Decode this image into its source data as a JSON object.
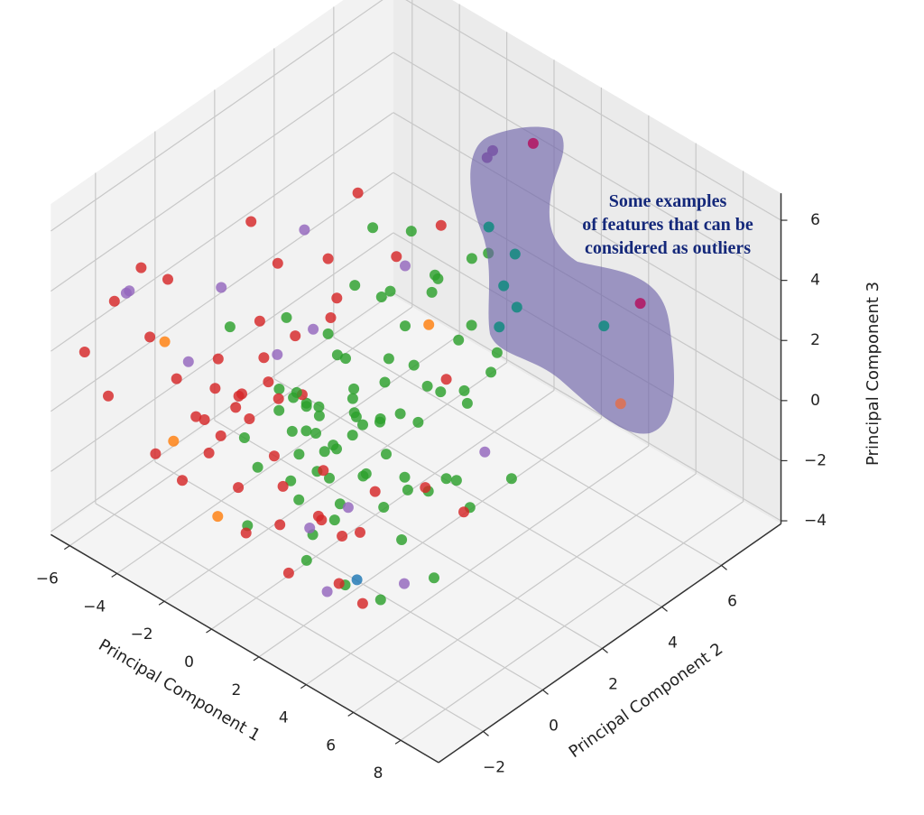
{
  "chart_data": {
    "type": "scatter3d",
    "title": "",
    "xlabel": "Principal Component 1",
    "ylabel": "Principal Component 2",
    "zlabel": "Principal Component 3",
    "xlim": [
      -6.8,
      9.6
    ],
    "ylim": [
      -3.5,
      8
    ],
    "zlim": [
      -4.1,
      6.9
    ],
    "xticks": [
      -6,
      -4,
      -2,
      0,
      2,
      4,
      6,
      8
    ],
    "yticks": [
      -2,
      0,
      2,
      4,
      6
    ],
    "zticks": [
      -4,
      -2,
      0,
      2,
      4,
      6
    ],
    "grid": true,
    "colors": [
      "#2ca02c",
      "#d62728",
      "#9467bd",
      "#ff7f0e",
      "#1f77b4",
      "#1f8a86",
      "#b0206a",
      "#7a5aa8",
      "#d9735a"
    ],
    "points_format": [
      "pc1",
      "pc2",
      "pc3",
      "color_index"
    ],
    "points": [
      [
        0,
        0,
        0,
        0
      ],
      [
        0.5,
        0.3,
        -0.5,
        0
      ],
      [
        -0.5,
        0.5,
        0.3,
        0
      ],
      [
        1,
        -0.5,
        0.2,
        0
      ],
      [
        -1,
        0,
        -0.4,
        0
      ],
      [
        0.3,
        1,
        0.6,
        0
      ],
      [
        1.5,
        0.5,
        -1,
        0
      ],
      [
        -0.8,
        -0.6,
        0.8,
        0
      ],
      [
        0.2,
        -1,
        -0.8,
        0
      ],
      [
        1.2,
        1.2,
        0.1,
        0
      ],
      [
        -1.4,
        0.8,
        -0.2,
        0
      ],
      [
        0.8,
        -1.2,
        0.5,
        0
      ],
      [
        2,
        0,
        -0.5,
        0
      ],
      [
        -0.3,
        1.6,
        -0.7,
        0
      ],
      [
        0.6,
        0.8,
        1.2,
        0
      ],
      [
        1.8,
        -0.8,
        -1.5,
        0
      ],
      [
        -1.2,
        -1,
        -1,
        0
      ],
      [
        0.4,
        2,
        0.5,
        0
      ],
      [
        2.5,
        1,
        -1,
        0
      ],
      [
        -0.6,
        1.2,
        1.5,
        0
      ],
      [
        1,
        2.5,
        1,
        0
      ],
      [
        0,
        3,
        1.5,
        0
      ],
      [
        0.5,
        3.5,
        2.5,
        0
      ],
      [
        -1,
        3,
        2,
        0
      ],
      [
        1.5,
        3,
        0,
        0
      ],
      [
        0,
        4,
        2.5,
        0
      ],
      [
        -0.5,
        4.5,
        1.8,
        0
      ],
      [
        1,
        4,
        0.8,
        0
      ],
      [
        2,
        3.5,
        -0.5,
        0
      ],
      [
        3,
        2,
        -1.5,
        0
      ],
      [
        2.5,
        3,
        0.5,
        0
      ],
      [
        0.8,
        2.2,
        -0.5,
        0
      ],
      [
        -2,
        2,
        1,
        0
      ],
      [
        -1.5,
        2.5,
        2.5,
        0
      ],
      [
        0,
        2.5,
        3,
        0
      ],
      [
        1.2,
        1.5,
        2,
        0
      ],
      [
        -0.2,
        0.2,
        -1.5,
        0
      ],
      [
        0.9,
        0.1,
        -2,
        0
      ],
      [
        2,
        1.5,
        -2,
        0
      ],
      [
        3,
        0.5,
        -2.5,
        0
      ],
      [
        3.5,
        1,
        -1,
        0
      ],
      [
        2.8,
        2.5,
        -2,
        0
      ],
      [
        1.5,
        -1.5,
        -2.5,
        0
      ],
      [
        0.5,
        -0.5,
        -2.8,
        0
      ],
      [
        4,
        2,
        -2,
        0
      ],
      [
        4.5,
        3,
        -1.5,
        0
      ],
      [
        1,
        0.5,
        0.8,
        0
      ],
      [
        -0.7,
        -0.2,
        1,
        0
      ],
      [
        0.1,
        -0.4,
        0.4,
        0
      ],
      [
        0.7,
        -0.1,
        -1.1,
        0
      ],
      [
        1.6,
        0.9,
        0.6,
        0
      ],
      [
        -0.4,
        0.9,
        -1.2,
        0
      ],
      [
        2.2,
        2,
        1.2,
        0
      ],
      [
        1.8,
        3.8,
        1.8,
        0
      ],
      [
        -1,
        4,
        3.5,
        0
      ],
      [
        0.3,
        5,
        2.5,
        0
      ],
      [
        -2.5,
        1,
        2,
        0
      ],
      [
        -3,
        -0.5,
        2.5,
        0
      ],
      [
        -0.5,
        -2,
        1,
        0
      ],
      [
        1.8,
        -2,
        0,
        0
      ],
      [
        0.2,
        -0.8,
        2,
        0
      ],
      [
        3,
        3.5,
        1,
        0
      ],
      [
        2,
        4.5,
        0.5,
        0
      ],
      [
        0.6,
        1.1,
        -0.2,
        0
      ],
      [
        1.3,
        0.2,
        0.4,
        0
      ],
      [
        -0.9,
        0.4,
        0.2,
        0
      ],
      [
        0.4,
        -0.2,
        0.9,
        0
      ],
      [
        4,
        -1,
        -3,
        0
      ],
      [
        5,
        0,
        -2.5,
        0
      ],
      [
        -1,
        -1.5,
        -2.5,
        0
      ],
      [
        2.5,
        -1,
        -3.2,
        0
      ],
      [
        1,
        5,
        3,
        0
      ],
      [
        -2,
        3.5,
        3.5,
        0
      ],
      [
        0,
        1,
        1.8,
        0
      ],
      [
        3.5,
        -0.5,
        -0.5,
        0
      ],
      [
        -1.8,
        0.2,
        0.5,
        0
      ],
      [
        0.8,
        2.8,
        -1.2,
        0
      ],
      [
        2.6,
        0.3,
        0.3,
        0
      ],
      [
        -2,
        -1,
        1,
        1
      ],
      [
        -2.5,
        -0.5,
        0.5,
        1
      ],
      [
        -1.5,
        -1.5,
        1.2,
        1
      ],
      [
        -3,
        -1,
        0.8,
        1
      ],
      [
        -2.2,
        0,
        1.5,
        1
      ],
      [
        -1.8,
        -0.8,
        0.2,
        1
      ],
      [
        -2.8,
        -1.8,
        0.5,
        1
      ],
      [
        -1,
        -0.8,
        1.8,
        1
      ],
      [
        -3.5,
        -0.5,
        1.2,
        1
      ],
      [
        -2,
        -2,
        -0.2,
        1
      ],
      [
        -1.2,
        -0.3,
        0.8,
        1
      ],
      [
        -4,
        -1.5,
        1,
        1
      ],
      [
        -3,
        0.5,
        2,
        1
      ],
      [
        -1.5,
        0.5,
        2.2,
        1
      ],
      [
        -4.5,
        -2,
        2.5,
        1
      ],
      [
        -5,
        -1,
        3.5,
        1
      ],
      [
        -6,
        -2,
        3,
        1
      ],
      [
        -5.5,
        -1.5,
        4,
        1
      ],
      [
        -4,
        1,
        4.5,
        1
      ],
      [
        -2,
        2,
        3.5,
        1
      ],
      [
        -1,
        1.5,
        3,
        1
      ],
      [
        0,
        0.5,
        3.5,
        1
      ],
      [
        -3,
        -3,
        0,
        1
      ],
      [
        -5,
        -3,
        1,
        1
      ],
      [
        -6,
        -3,
        2,
        1
      ],
      [
        1.5,
        -1,
        -1.5,
        1
      ],
      [
        2,
        -1.5,
        -0.8,
        1
      ],
      [
        1,
        -2,
        -1.2,
        1
      ],
      [
        2.5,
        -0.5,
        -1.8,
        1
      ],
      [
        3,
        -1.5,
        -1,
        1
      ],
      [
        2,
        -2.5,
        -2,
        1
      ],
      [
        0.5,
        -1.5,
        -0.5,
        1
      ],
      [
        3.5,
        -2,
        -2,
        1
      ],
      [
        4,
        0.5,
        -0.3,
        1
      ],
      [
        1.5,
        0.8,
        -1.8,
        1
      ],
      [
        -2,
        3,
        5,
        1
      ],
      [
        -1,
        3.5,
        3,
        1
      ],
      [
        -3.5,
        1.5,
        3,
        1
      ],
      [
        0.5,
        -3,
        0.5,
        1
      ],
      [
        5,
        1,
        -1,
        1
      ],
      [
        4.5,
        -2,
        -2.2,
        1
      ],
      [
        -2.5,
        -2.5,
        -1,
        1
      ],
      [
        -0.5,
        -1,
        -0.3,
        1
      ],
      [
        -1.5,
        -2,
        0.6,
        1
      ],
      [
        -3.2,
        -1.2,
        -0.2,
        1
      ],
      [
        3,
        2,
        1.8,
        1
      ],
      [
        -1,
        5,
        3,
        1
      ],
      [
        -0.2,
        -0.3,
        1.4,
        1
      ],
      [
        1.2,
        -0.7,
        -0.2,
        1
      ],
      [
        0.2,
        -2.5,
        -1.5,
        1
      ],
      [
        -4,
        0,
        3,
        2
      ],
      [
        -5.5,
        -2,
        3.5,
        2
      ],
      [
        -3,
        2,
        4,
        2
      ],
      [
        -2,
        1.5,
        1.5,
        2
      ],
      [
        -1,
        -0.5,
        2.5,
        2
      ],
      [
        -3.5,
        -1.5,
        1.8,
        2
      ],
      [
        1,
        -1,
        -2,
        2
      ],
      [
        3,
        -2,
        -2.5,
        2
      ],
      [
        5,
        -1,
        -2,
        2
      ],
      [
        0,
        3,
        3.5,
        2
      ],
      [
        -6,
        -1.5,
        3,
        2
      ],
      [
        2,
        -0.5,
        -1.2,
        2
      ],
      [
        4,
        2.5,
        -0.5,
        2
      ],
      [
        -4.5,
        -1.5,
        2,
        3
      ],
      [
        -3.5,
        -2,
        -0.5,
        3
      ],
      [
        -1,
        -2.5,
        -1.5,
        3
      ],
      [
        1,
        3,
        2,
        3
      ],
      [
        3,
        -1,
        -2.8,
        4
      ],
      [
        0,
        7.3,
        4.6,
        6
      ],
      [
        0,
        5.75,
        5.2,
        7
      ],
      [
        0,
        5.94,
        5.3,
        7
      ],
      [
        0,
        5.81,
        2.85,
        5
      ],
      [
        0,
        6.69,
        1.34,
        5
      ],
      [
        0,
        6.31,
        0.55,
        5
      ],
      [
        0,
        6.75,
        -0.47,
        5
      ],
      [
        0,
        6.16,
        -0.72,
        5
      ],
      [
        4,
        6.5,
        0.93,
        5
      ],
      [
        4,
        7.72,
        0.84,
        6
      ],
      [
        4,
        7.06,
        -2.04,
        8
      ]
    ],
    "annotation": [
      "Some examples",
      "of features that can be",
      "considered as outliers"
    ],
    "annotation_color": "#14287a",
    "highlight_color": "#6b5fa8"
  }
}
